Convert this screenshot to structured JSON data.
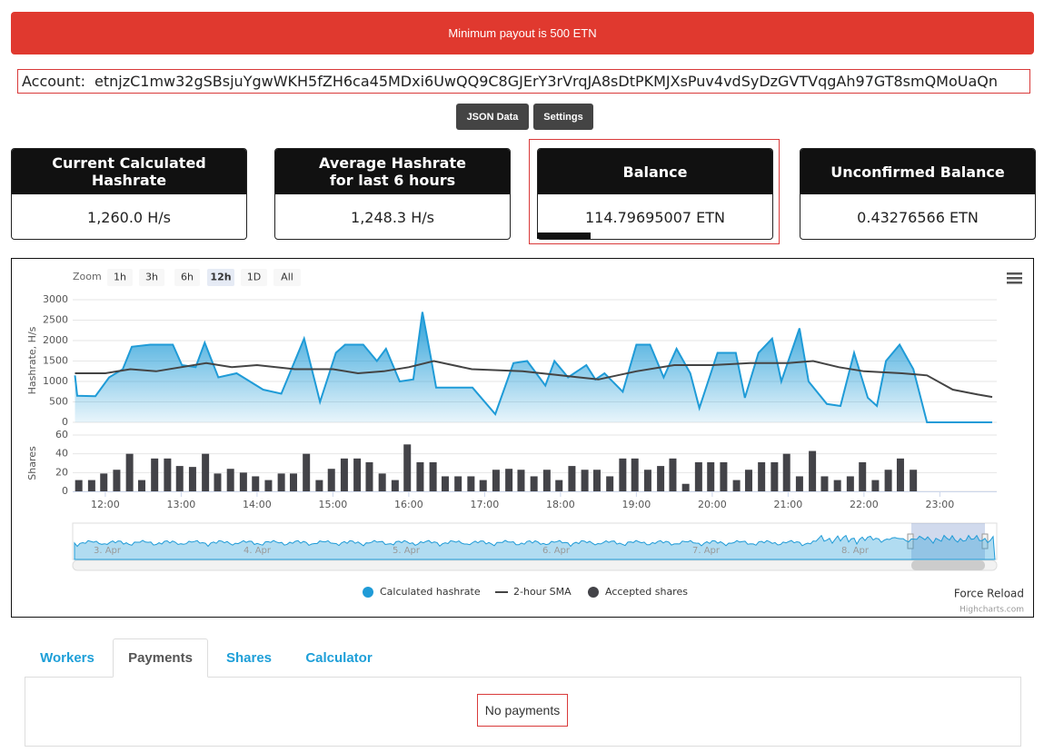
{
  "alert": "Minimum payout is 500 ETN",
  "account": {
    "label": "Account:",
    "address": "etnjzC1mw32gSBsjuYgwWKH5fZH6ca45MDxi6UwQQ9C8GJErY3rVrqJA8sDtPKMJXsPuv4vdSyDzGVTVqgAh97GT8smQMoUaQn"
  },
  "buttons": [
    "JSON Data",
    "Settings"
  ],
  "stats": [
    {
      "title": [
        "Current Calculated",
        "Hashrate"
      ],
      "value": "1,260.0 H/s"
    },
    {
      "title": [
        "Average Hashrate",
        "for last 6 hours"
      ],
      "value": "1,248.3 H/s"
    },
    {
      "title": [
        "Balance"
      ],
      "value": "114.79695007 ETN"
    },
    {
      "title": [
        "Unconfirmed Balance"
      ],
      "value": "0.43276566 ETN"
    }
  ],
  "chart_ui": {
    "zoom_label": "Zoom",
    "zoom_buttons": [
      "1h",
      "3h",
      "6h",
      "12h",
      "1D",
      "All"
    ],
    "zoom_selected": "12h",
    "navigator_labels": [
      "3. Apr",
      "4. Apr",
      "5. Apr",
      "6. Apr",
      "7. Apr",
      "8. Apr"
    ],
    "force_reload": "Force Reload",
    "credits": "Highcharts.com"
  },
  "chart_data": [
    {
      "type": "area",
      "y_label": "Hashrate, H/s",
      "xlim": [
        11.57,
        23.75
      ],
      "ylim": [
        0,
        3000
      ],
      "yticks": [
        0,
        500,
        1000,
        1500,
        2000,
        2500,
        3000
      ],
      "grid": true,
      "series": [
        {
          "name": "Calculated hashrate",
          "type": "area",
          "color": "#1f9bd7",
          "x": [
            11.6,
            11.63,
            11.87,
            12.05,
            12.23,
            12.35,
            12.59,
            12.89,
            13.01,
            13.19,
            13.31,
            13.49,
            13.73,
            14.08,
            14.32,
            14.62,
            14.83,
            15.04,
            15.16,
            15.4,
            15.58,
            15.7,
            15.88,
            16.06,
            16.18,
            16.3,
            16.36,
            16.72,
            16.84,
            17.14,
            17.38,
            17.56,
            17.8,
            17.92,
            18.1,
            18.34,
            18.46,
            18.58,
            18.82,
            19.0,
            19.18,
            19.36,
            19.53,
            19.71,
            19.83,
            20.07,
            20.31,
            20.43,
            20.61,
            20.79,
            20.91,
            21.15,
            21.27,
            21.51,
            21.69,
            21.87,
            22.05,
            22.17,
            22.29,
            22.47,
            22.65,
            22.83,
            23.69
          ],
          "values": [
            1150,
            650,
            640,
            1100,
            1300,
            1850,
            1900,
            1900,
            1400,
            1350,
            1950,
            1100,
            1200,
            800,
            700,
            2050,
            500,
            1700,
            1900,
            1900,
            1500,
            1800,
            1000,
            1050,
            2700,
            1500,
            850,
            850,
            850,
            200,
            1450,
            1500,
            900,
            1500,
            1100,
            1400,
            1050,
            1200,
            750,
            1900,
            1900,
            1100,
            1800,
            1200,
            350,
            1700,
            1700,
            600,
            1700,
            2050,
            1000,
            2300,
            1000,
            450,
            400,
            1700,
            600,
            400,
            1500,
            1900,
            1300,
            0,
            0
          ]
        },
        {
          "name": "2-hour SMA",
          "type": "line",
          "color": "#444444",
          "x": [
            11.6,
            12.0,
            12.33,
            12.67,
            13.33,
            13.67,
            14.0,
            14.5,
            15.0,
            15.33,
            15.67,
            16.0,
            16.33,
            16.83,
            17.5,
            18.0,
            18.5,
            19.0,
            19.5,
            20.0,
            20.5,
            21.0,
            21.33,
            21.67,
            22.0,
            22.5,
            22.83,
            23.17,
            23.5,
            23.69
          ],
          "values": [
            1200,
            1200,
            1300,
            1250,
            1450,
            1350,
            1400,
            1300,
            1300,
            1200,
            1250,
            1350,
            1500,
            1300,
            1250,
            1150,
            1050,
            1250,
            1400,
            1400,
            1450,
            1450,
            1500,
            1350,
            1250,
            1200,
            1150,
            800,
            680,
            620
          ]
        }
      ]
    },
    {
      "type": "bar",
      "y_label": "Shares",
      "xlim": [
        11.57,
        23.75
      ],
      "ylim": [
        0,
        60
      ],
      "yticks": [
        0,
        20,
        40,
        60
      ],
      "xticks": [
        {
          "value": 12,
          "label": "12:00"
        },
        {
          "value": 13,
          "label": "13:00"
        },
        {
          "value": 14,
          "label": "14:00"
        },
        {
          "value": 15,
          "label": "15:00"
        },
        {
          "value": 16,
          "label": "16:00"
        },
        {
          "value": 17,
          "label": "17:00"
        },
        {
          "value": 18,
          "label": "18:00"
        },
        {
          "value": 19,
          "label": "19:00"
        },
        {
          "value": 20,
          "label": "20:00"
        },
        {
          "value": 21,
          "label": "21:00"
        },
        {
          "value": 22,
          "label": "22:00"
        },
        {
          "value": 23,
          "label": "23:00"
        }
      ],
      "grid": true,
      "series": [
        {
          "name": "Accepted shares",
          "color": "#434348",
          "x": [
            11.65,
            11.82,
            11.98,
            12.15,
            12.32,
            12.48,
            12.65,
            12.82,
            12.98,
            13.15,
            13.32,
            13.48,
            13.65,
            13.82,
            13.98,
            14.15,
            14.32,
            14.48,
            14.65,
            14.82,
            14.98,
            15.15,
            15.32,
            15.48,
            15.65,
            15.82,
            15.98,
            16.15,
            16.32,
            16.48,
            16.65,
            16.82,
            16.98,
            17.15,
            17.32,
            17.48,
            17.65,
            17.82,
            17.98,
            18.15,
            18.32,
            18.48,
            18.65,
            18.82,
            18.98,
            19.15,
            19.32,
            19.48,
            19.65,
            19.82,
            19.98,
            20.15,
            20.32,
            20.48,
            20.65,
            20.82,
            20.98,
            21.15,
            21.32,
            21.48,
            21.65,
            21.82,
            21.98,
            22.15,
            22.32,
            22.48,
            22.65
          ],
          "values": [
            12,
            12,
            19,
            23,
            40,
            12,
            35,
            35,
            27,
            26,
            40,
            19,
            24,
            20,
            16,
            12,
            19,
            19,
            40,
            12,
            24,
            35,
            35,
            31,
            19,
            12,
            50,
            31,
            31,
            16,
            16,
            16,
            12,
            23,
            24,
            23,
            16,
            23,
            12,
            27,
            23,
            23,
            16,
            35,
            35,
            23,
            27,
            35,
            8,
            31,
            31,
            31,
            12,
            23,
            31,
            31,
            40,
            16,
            43,
            16,
            12,
            16,
            31,
            12,
            23,
            35,
            23
          ]
        }
      ]
    }
  ],
  "tabs": [
    "Workers",
    "Payments",
    "Shares",
    "Calculator"
  ],
  "active_tab": "Payments",
  "message": "No payments"
}
